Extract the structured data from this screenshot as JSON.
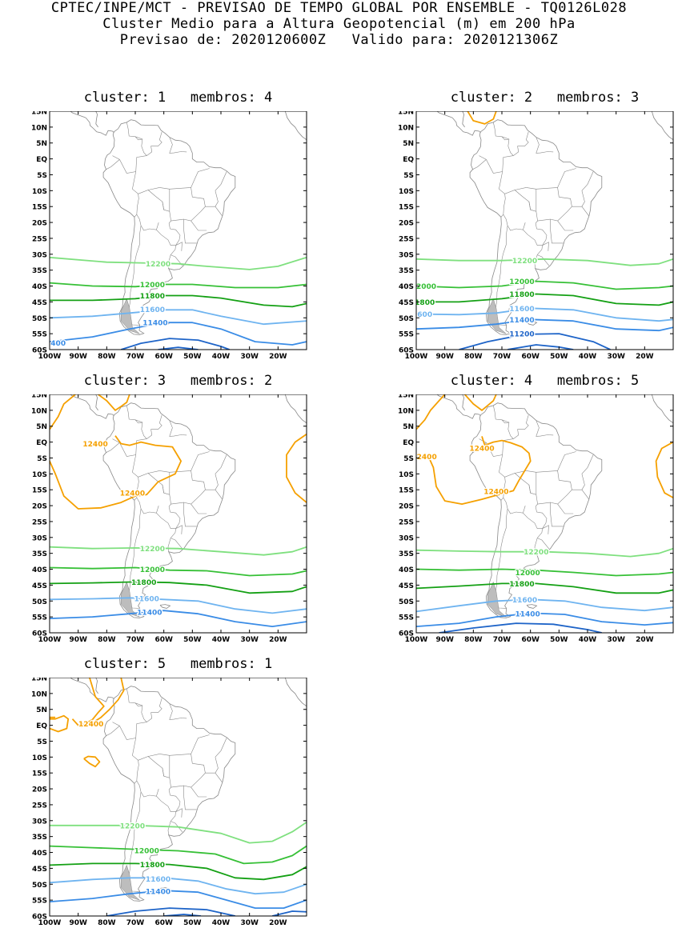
{
  "header": {
    "line1": "CPTEC/INPE/MCT - PREVISAO DE TEMPO GLOBAL POR ENSEMBLE - TQ0126L028",
    "line2": "Cluster Medio para a Altura Geopotencial (m) em 200 hPa",
    "line3": "Previsao de: 2020120600Z   Valido para: 2020121306Z"
  },
  "axes": {
    "lat_labels": [
      "15N",
      "10N",
      "5N",
      "EQ",
      "5S",
      "10S",
      "15S",
      "20S",
      "25S",
      "30S",
      "35S",
      "40S",
      "45S",
      "50S",
      "55S",
      "60S"
    ],
    "lon_labels": [
      "100W",
      "90W",
      "80W",
      "70W",
      "60W",
      "50W",
      "40W",
      "30W",
      "20W"
    ]
  },
  "colors": {
    "c12400": "#f5a000",
    "c12200": "#7fe07f",
    "c12000": "#36c036",
    "c11800": "#14a014",
    "c11600": "#6fb4f0",
    "c11400": "#3a8ce6",
    "c11200": "#1e64c8",
    "coast": "#888888"
  },
  "panels": [
    {
      "title": "cluster: 1   membros: 4",
      "labels": [
        {
          "text": "12200",
          "color": "c12200"
        },
        {
          "text": "12000",
          "color": "c12000"
        },
        {
          "text": "11800",
          "color": "c11800"
        },
        {
          "text": "11600",
          "color": "c11600"
        },
        {
          "text": "11400",
          "color": "c11400"
        },
        {
          "text": "400",
          "color": "c11400"
        }
      ]
    },
    {
      "title": "cluster: 2   membros: 3",
      "labels": [
        {
          "text": "12200",
          "color": "c12200"
        },
        {
          "text": "12000",
          "color": "c12000"
        },
        {
          "text": "2000",
          "color": "c12000"
        },
        {
          "text": "11800",
          "color": "c11800"
        },
        {
          "text": "1800",
          "color": "c11800"
        },
        {
          "text": "11600",
          "color": "c11600"
        },
        {
          "text": "600",
          "color": "c11600"
        },
        {
          "text": "11400",
          "color": "c11400"
        },
        {
          "text": "11200",
          "color": "c11200"
        }
      ]
    },
    {
      "title": "cluster: 3   membros: 2",
      "labels": [
        {
          "text": "12400",
          "color": "c12400"
        },
        {
          "text": "12400",
          "color": "c12400"
        },
        {
          "text": "12200",
          "color": "c12200"
        },
        {
          "text": "12000",
          "color": "c12000"
        },
        {
          "text": "11800",
          "color": "c11800"
        },
        {
          "text": "11600",
          "color": "c11600"
        },
        {
          "text": "11400",
          "color": "c11400"
        }
      ]
    },
    {
      "title": "cluster: 4   membros: 5",
      "labels": [
        {
          "text": "12400",
          "color": "c12400"
        },
        {
          "text": "2400",
          "color": "c12400"
        },
        {
          "text": "12400",
          "color": "c12400"
        },
        {
          "text": "12200",
          "color": "c12200"
        },
        {
          "text": "12000",
          "color": "c12000"
        },
        {
          "text": "11800",
          "color": "c11800"
        },
        {
          "text": "11600",
          "color": "c11600"
        },
        {
          "text": "11400",
          "color": "c11400"
        }
      ]
    },
    {
      "title": "cluster: 5   membros: 1",
      "labels": [
        {
          "text": "12400",
          "color": "c12400"
        },
        {
          "text": "12200",
          "color": "c12200"
        },
        {
          "text": "12000",
          "color": "c12000"
        },
        {
          "text": "11800",
          "color": "c11800"
        },
        {
          "text": "11600",
          "color": "c11600"
        },
        {
          "text": "11400",
          "color": "c11400"
        }
      ]
    }
  ]
}
